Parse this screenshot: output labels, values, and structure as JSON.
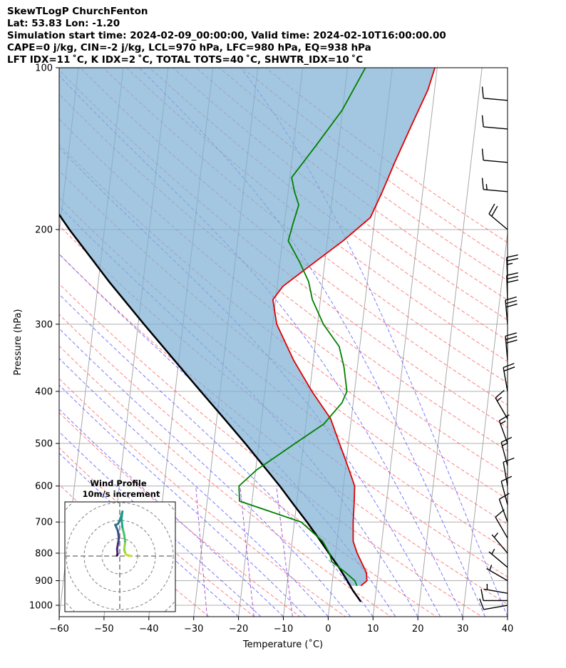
{
  "header": {
    "title": "SkewTLogP ChurchFenton",
    "location": "Lat: 53.83   Lon: -1.20",
    "times": "Simulation start time: 2024-02-09_00:00:00, Valid time: 2024-02-10T16:00:00.00",
    "indices1": "CAPE=0 j/kg, CIN=-2 j/kg, LCL=970 hPa, LFC=980 hPa, EQ=938 hPa",
    "indices2": "LFT IDX=11 ˚C, K IDX=2 ˚C, TOTAL TOTS=40 ˚C, SHWTR_IDX=10 ˚C"
  },
  "colors": {
    "temperature": "#e00000",
    "dewpoint": "#008000",
    "parcel": "#000000",
    "cape_fill": "#7fb0d5",
    "isotherm": "#a8a8a8",
    "dry_adiabat": "#ff5555",
    "moist_adiabat": "#4d4dff",
    "mixing_ratio": "#9933cc"
  },
  "chart_data": {
    "type": "skewt",
    "xlabel": "Temperature (˚C)",
    "ylabel": "Pressure (hPa)",
    "xlim": [
      -60,
      40
    ],
    "ylim": [
      1050,
      100
    ],
    "x_ticks": [
      -60,
      -50,
      -40,
      -30,
      -20,
      -10,
      0,
      10,
      20,
      30,
      40
    ],
    "p_ticks": [
      1000,
      900,
      800,
      700,
      600,
      500,
      400,
      300,
      200,
      100
    ],
    "grid": true,
    "temperature": [
      {
        "p": 920,
        "t": 6.5
      },
      {
        "p": 900,
        "t": 7.7
      },
      {
        "p": 870,
        "t": 7.4
      },
      {
        "p": 800,
        "t": 4.8
      },
      {
        "p": 760,
        "t": 3.6
      },
      {
        "p": 700,
        "t": 3.1
      },
      {
        "p": 640,
        "t": 2.8
      },
      {
        "p": 600,
        "t": 2.5
      },
      {
        "p": 550,
        "t": 0.4
      },
      {
        "p": 500,
        "t": -2.0
      },
      {
        "p": 450,
        "t": -4.6
      },
      {
        "p": 400,
        "t": -9.5
      },
      {
        "p": 350,
        "t": -14.4
      },
      {
        "p": 300,
        "t": -19.1
      },
      {
        "p": 270,
        "t": -20.6
      },
      {
        "p": 255,
        "t": -18.7
      },
      {
        "p": 235,
        "t": -13.6
      },
      {
        "p": 210,
        "t": -6.5
      },
      {
        "p": 190,
        "t": -1.0
      },
      {
        "p": 170,
        "t": 1.0
      },
      {
        "p": 150,
        "t": 3.0
      },
      {
        "p": 130,
        "t": 5.5
      },
      {
        "p": 110,
        "t": 8.5
      },
      {
        "p": 100,
        "t": 9.5
      }
    ],
    "dewpoint": [
      {
        "p": 920,
        "t": 5.6
      },
      {
        "p": 900,
        "t": 5.0
      },
      {
        "p": 870,
        "t": 2.8
      },
      {
        "p": 830,
        "t": -0.6
      },
      {
        "p": 800,
        "t": -1.4
      },
      {
        "p": 760,
        "t": -3.2
      },
      {
        "p": 700,
        "t": -8.5
      },
      {
        "p": 640,
        "t": -22.8
      },
      {
        "p": 600,
        "t": -23.3
      },
      {
        "p": 560,
        "t": -19.8
      },
      {
        "p": 500,
        "t": -11.9
      },
      {
        "p": 460,
        "t": -6.0
      },
      {
        "p": 420,
        "t": -2.5
      },
      {
        "p": 400,
        "t": -1.7
      },
      {
        "p": 360,
        "t": -3.0
      },
      {
        "p": 330,
        "t": -4.6
      },
      {
        "p": 300,
        "t": -8.7
      },
      {
        "p": 270,
        "t": -11.8
      },
      {
        "p": 250,
        "t": -13.1
      },
      {
        "p": 230,
        "t": -15.6
      },
      {
        "p": 210,
        "t": -18.7
      },
      {
        "p": 195,
        "t": -18.1
      },
      {
        "p": 180,
        "t": -17.3
      },
      {
        "p": 170,
        "t": -18.6
      },
      {
        "p": 160,
        "t": -19.6
      },
      {
        "p": 140,
        "t": -15.1
      },
      {
        "p": 120,
        "t": -10.1
      },
      {
        "p": 100,
        "t": -6.0
      }
    ],
    "parcel": [
      {
        "p": 985,
        "t": 6.9
      },
      {
        "p": 938,
        "t": 4.8
      },
      {
        "p": 900,
        "t": 3.3
      },
      {
        "p": 850,
        "t": 1.1
      },
      {
        "p": 800,
        "t": -1.5
      },
      {
        "p": 750,
        "t": -4.2
      },
      {
        "p": 700,
        "t": -7.2
      },
      {
        "p": 650,
        "t": -10.6
      },
      {
        "p": 600,
        "t": -14.2
      },
      {
        "p": 550,
        "t": -18.4
      },
      {
        "p": 500,
        "t": -23.0
      },
      {
        "p": 450,
        "t": -28.3
      },
      {
        "p": 400,
        "t": -34.3
      },
      {
        "p": 350,
        "t": -41.0
      },
      {
        "p": 300,
        "t": -48.7
      },
      {
        "p": 250,
        "t": -57.6
      },
      {
        "p": 200,
        "t": -67.8
      },
      {
        "p": 175,
        "t": -73.4
      },
      {
        "p": 150,
        "t": -79.6
      },
      {
        "p": 125,
        "t": -86.8
      },
      {
        "p": 100,
        "t": -95.0
      }
    ],
    "wind_barbs": [
      {
        "p": 1000,
        "dir": 260,
        "spd_kt": 10
      },
      {
        "p": 980,
        "dir": 270,
        "spd_kt": 10
      },
      {
        "p": 950,
        "dir": 280,
        "spd_kt": 5
      },
      {
        "p": 900,
        "dir": 300,
        "spd_kt": 5
      },
      {
        "p": 850,
        "dir": 310,
        "spd_kt": 5
      },
      {
        "p": 800,
        "dir": 320,
        "spd_kt": 5
      },
      {
        "p": 750,
        "dir": 330,
        "spd_kt": 10
      },
      {
        "p": 700,
        "dir": 340,
        "spd_kt": 10
      },
      {
        "p": 650,
        "dir": 345,
        "spd_kt": 10
      },
      {
        "p": 600,
        "dir": 350,
        "spd_kt": 10
      },
      {
        "p": 550,
        "dir": 345,
        "spd_kt": 15
      },
      {
        "p": 500,
        "dir": 340,
        "spd_kt": 15
      },
      {
        "p": 450,
        "dir": 330,
        "spd_kt": 15
      },
      {
        "p": 400,
        "dir": 350,
        "spd_kt": 20
      },
      {
        "p": 350,
        "dir": 355,
        "spd_kt": 30
      },
      {
        "p": 300,
        "dir": 355,
        "spd_kt": 30
      },
      {
        "p": 270,
        "dir": 358,
        "spd_kt": 30
      },
      {
        "p": 250,
        "dir": 358,
        "spd_kt": 25
      },
      {
        "p": 200,
        "dir": 310,
        "spd_kt": 20
      },
      {
        "p": 170,
        "dir": 275,
        "spd_kt": 15
      },
      {
        "p": 150,
        "dir": 275,
        "spd_kt": 10
      },
      {
        "p": 130,
        "dir": 275,
        "spd_kt": 10
      },
      {
        "p": 115,
        "dir": 275,
        "spd_kt": 10
      }
    ],
    "hodograph": {
      "title": "Wind Profile",
      "subtitle": "10m/s increment",
      "ring_step_ms": 10,
      "rings": 3,
      "points_ms": [
        {
          "u": 6.3,
          "v": 0.0
        },
        {
          "u": 3.5,
          "v": 0.8
        },
        {
          "u": 3.0,
          "v": 2.0
        },
        {
          "u": 2.5,
          "v": 3.5
        },
        {
          "u": 3.0,
          "v": 8.0
        },
        {
          "u": 2.5,
          "v": 12.0
        },
        {
          "u": 1.5,
          "v": 16.0
        },
        {
          "u": 1.0,
          "v": 21.0
        },
        {
          "u": 1.5,
          "v": 25.0
        },
        {
          "u": 0.0,
          "v": 20.0
        },
        {
          "u": -1.0,
          "v": 18.0
        },
        {
          "u": -2.5,
          "v": 17.5
        },
        {
          "u": -1.0,
          "v": 14.0
        },
        {
          "u": -0.5,
          "v": 10.0
        },
        {
          "u": -1.0,
          "v": 7.0
        },
        {
          "u": -1.5,
          "v": 4.0
        },
        {
          "u": -1.2,
          "v": 1.0
        },
        {
          "u": -1.6,
          "v": 0.3
        }
      ]
    }
  }
}
